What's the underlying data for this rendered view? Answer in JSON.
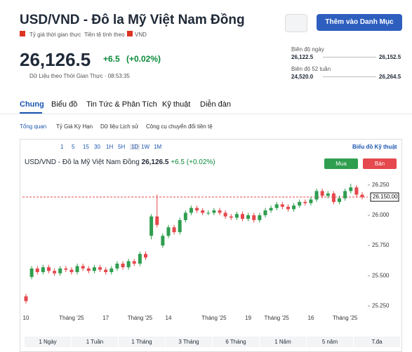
{
  "header": {
    "title": "USD/VND - Đô la Mỹ Việt Nam Đồng",
    "realtime": "Tỷ giá thời gian thực",
    "currency_label": "Tiền tệ tính theo",
    "currency": "VND",
    "add_button": "Thêm vào Danh Mục"
  },
  "quote": {
    "price": "26,126.5",
    "change": "+6.5",
    "change_pct": "(+0.02%)",
    "note": "Dữ Liệu theo Thời Gian Thực · 08:53:35"
  },
  "ranges": [
    {
      "label": "Biên độ ngày",
      "low": "26,122.5",
      "high": "26,152.5"
    },
    {
      "label": "Biên độ 52 tuần",
      "low": "24,520.0",
      "high": "26,264.5"
    }
  ],
  "tabs": [
    "Chung",
    "Biểu đồ",
    "Tin Tức & Phân Tích",
    "Kỹ thuật",
    "Diễn đàn"
  ],
  "subtabs": [
    "Tổng quan",
    "Tỷ Giá Kỳ Hạn",
    "Dữ liệu Lịch sử",
    "Công cụ chuyển đổi tiền tệ"
  ],
  "toolbar": {
    "intervals": [
      "1",
      "5",
      "15",
      "30",
      "1H",
      "5H",
      "1D",
      "1W",
      "1M"
    ],
    "link": "Biểu đồ Kỹ thuật"
  },
  "chart_data": {
    "type": "candlestick",
    "title": "USD/VND - Đô la Mỹ Việt Nam Đồng",
    "last": "26,126.5",
    "change": "+6.5",
    "change_pct": "(+0.02%)",
    "buy": "Mua",
    "sell": "Bán",
    "up_color": "#2f9e4f",
    "down_color": "#e5484d",
    "categories": [
      "10",
      null,
      null,
      null,
      null,
      null,
      null,
      null,
      "Tháng '25",
      null,
      null,
      null,
      null,
      null,
      "17",
      null,
      null,
      null,
      null,
      null,
      "Tháng '25",
      null,
      null,
      null,
      null,
      "14",
      null,
      null,
      null,
      null,
      null,
      null,
      null,
      "Tháng '25",
      null,
      null,
      null,
      null,
      null,
      "19",
      null,
      null,
      null,
      null,
      "Tháng '25",
      null,
      null,
      null,
      null,
      null,
      "16",
      null,
      null,
      null,
      null,
      null,
      "Tháng '25",
      null,
      null,
      null
    ],
    "open": [
      25330,
      25490,
      25560,
      25530,
      25570,
      25540,
      25520,
      25560,
      25550,
      25530,
      25580,
      25560,
      25540,
      25570,
      25550,
      25530,
      25560,
      25600,
      25570,
      25620,
      25600,
      25680,
      25830,
      25990,
      25750,
      25830,
      25900,
      25860,
      25960,
      26020,
      26060,
      26040,
      26020,
      26020,
      26040,
      26020,
      25990,
      25980,
      26010,
      25970,
      26000,
      25960,
      26000,
      26040,
      26060,
      26090,
      26070,
      26050,
      26080,
      26110,
      26100,
      26130,
      26200,
      26160,
      26180,
      26110,
      26140,
      26200,
      26230,
      26170
    ],
    "high": [
      25350,
      25580,
      25580,
      25590,
      25590,
      25560,
      25580,
      25580,
      25570,
      25600,
      25600,
      25580,
      25590,
      25590,
      25570,
      25580,
      25620,
      25620,
      25640,
      25640,
      25700,
      25700,
      26010,
      26170,
      25850,
      25920,
      25920,
      25980,
      26040,
      26080,
      26080,
      26060,
      26040,
      26060,
      26060,
      26040,
      26010,
      26030,
      26030,
      26020,
      26020,
      26020,
      26060,
      26080,
      26110,
      26110,
      26090,
      26100,
      26130,
      26130,
      26150,
      26220,
      26220,
      26200,
      26200,
      26160,
      26220,
      26260,
      26250,
      26190
    ],
    "low": [
      25270,
      25470,
      25510,
      25510,
      25520,
      25500,
      25500,
      25530,
      25510,
      25510,
      25540,
      25520,
      25520,
      25530,
      25510,
      25510,
      25540,
      25550,
      25550,
      25580,
      25580,
      25630,
      25800,
      25900,
      25730,
      25810,
      25840,
      25840,
      25940,
      26000,
      26020,
      26000,
      26000,
      26000,
      26000,
      25970,
      25960,
      25960,
      25950,
      25950,
      25940,
      25940,
      25980,
      26020,
      26040,
      26050,
      26030,
      26030,
      26060,
      26080,
      26080,
      26110,
      26140,
      26140,
      26090,
      26090,
      26120,
      26180,
      26150,
      26130
    ],
    "close": [
      25290,
      25560,
      25530,
      25570,
      25540,
      25520,
      25560,
      25550,
      25530,
      25580,
      25560,
      25540,
      25570,
      25550,
      25530,
      25560,
      25600,
      25570,
      25620,
      25600,
      25680,
      25650,
      25990,
      25920,
      25830,
      25900,
      25860,
      25960,
      26020,
      26060,
      26040,
      26020,
      26020,
      26040,
      26020,
      25990,
      25980,
      26010,
      25970,
      26000,
      25960,
      26000,
      26040,
      26060,
      26090,
      26070,
      26050,
      26080,
      26110,
      26100,
      26130,
      26200,
      26160,
      26180,
      26110,
      26140,
      26200,
      26230,
      26170,
      26150
    ],
    "ylim": [
      25200,
      26330
    ],
    "yticks": [
      {
        "value": 25250,
        "label": "25.250"
      },
      {
        "value": 25500,
        "label": "25.500"
      },
      {
        "value": 25750,
        "label": "25.750"
      },
      {
        "value": 26000,
        "label": "26.000"
      },
      {
        "value": 26250,
        "label": "26.250"
      }
    ],
    "current": {
      "value": 26150,
      "label": "26.150,00"
    }
  },
  "periods": [
    "1 Ngày",
    "1 Tuần",
    "1 Tháng",
    "3 Tháng",
    "6 Tháng",
    "1 Năm",
    "5 năm",
    "T.đa"
  ]
}
